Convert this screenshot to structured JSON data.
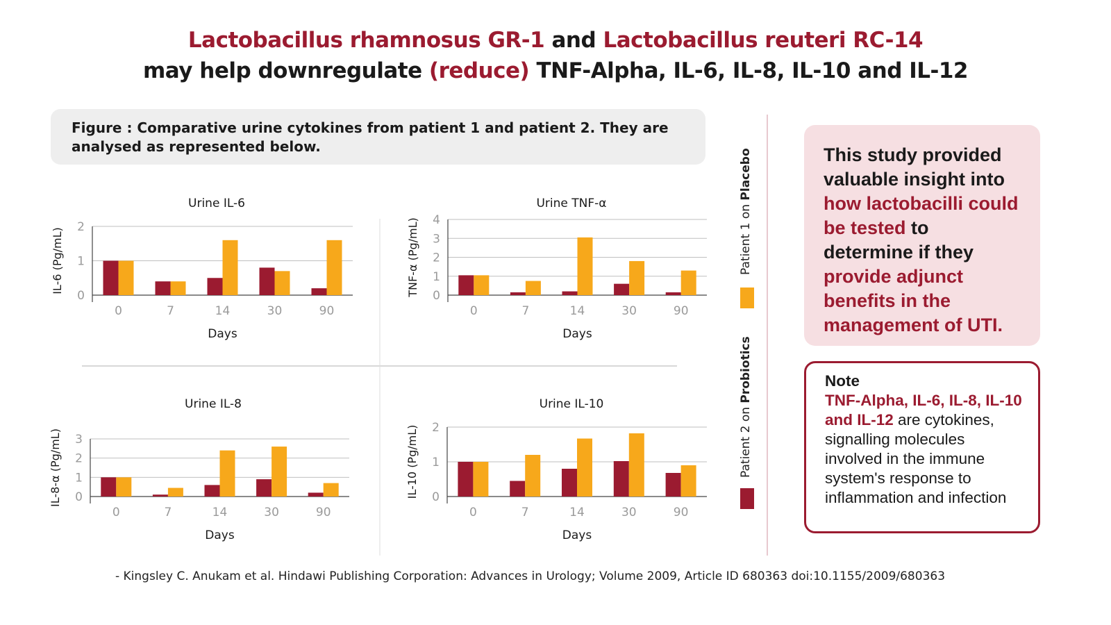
{
  "title": {
    "line1_part1": "Lactobacillus rhamnosus GR-1",
    "line1_part2": " and ",
    "line1_part3": "Lactobacillus reuteri RC-14",
    "line2_part1": "may help downregulate ",
    "line2_part2": "(reduce)",
    "line2_part3": " TNF-Alpha, IL-6, IL-8, IL-10 and IL-12"
  },
  "caption": "Figure : Comparative urine  cytokines from patient 1 and patient 2.  They are analysed as represented below.",
  "legend": {
    "placebo_prefix": "Patient 1 on ",
    "placebo_bold": "Placebo",
    "probiotics_prefix": "Patient 2 on ",
    "probiotics_bold": "Probiotics"
  },
  "colors": {
    "probiotics": "#9b1b30",
    "placebo": "#f7a81b",
    "accent": "#9b1b30"
  },
  "insight": {
    "p1": "This study provided valuable insight into ",
    "p2": "how lactobacilli could be tested",
    "p3": " to determine if they ",
    "p4": "provide adjunct benefits in the management of UTI."
  },
  "note": {
    "heading": "Note",
    "highlight": "TNF-Alpha, IL-6, IL-8, IL-10 and IL-12",
    "body": " are cytokines, signalling molecules involved in the immune system's response to inflammation and infection"
  },
  "reference": "-  Kingsley C. Anukam et al. Hindawi Publishing Corporation: Advances in Urology; Volume 2009, Article ID 680363  doi:10.1155/2009/680363",
  "chart_data": [
    {
      "type": "bar",
      "title": "Urine IL-6",
      "xlabel": "Days",
      "ylabel": "IL-6 (Pg/mL)",
      "categories": [
        "0",
        "7",
        "14",
        "30",
        "90"
      ],
      "ylim": [
        0,
        2
      ],
      "yticks": [
        0,
        1,
        2
      ],
      "series": [
        {
          "name": "Patient 2 on Probiotics",
          "values": [
            1.0,
            0.4,
            0.5,
            0.8,
            0.2
          ]
        },
        {
          "name": "Patient 1 on Placebo",
          "values": [
            1.0,
            0.4,
            1.6,
            0.7,
            1.6
          ]
        }
      ]
    },
    {
      "type": "bar",
      "title": "Urine TNF-α",
      "xlabel": "Days",
      "ylabel": "TNF-α (Pg/mL)",
      "categories": [
        "0",
        "7",
        "14",
        "30",
        "90"
      ],
      "ylim": [
        0,
        4
      ],
      "yticks": [
        0,
        1,
        2,
        3,
        4
      ],
      "series": [
        {
          "name": "Patient 2 on Probiotics",
          "values": [
            1.05,
            0.15,
            0.2,
            0.6,
            0.15
          ]
        },
        {
          "name": "Patient 1 on Placebo",
          "values": [
            1.05,
            0.75,
            3.05,
            1.8,
            1.3
          ]
        }
      ]
    },
    {
      "type": "bar",
      "title": "Urine IL-8",
      "xlabel": "Days",
      "ylabel": "IL-8-α (Pg/mL)",
      "categories": [
        "0",
        "7",
        "14",
        "30",
        "90"
      ],
      "ylim": [
        0,
        3
      ],
      "yticks": [
        0,
        1,
        2,
        3
      ],
      "series": [
        {
          "name": "Patient 2 on Probiotics",
          "values": [
            1.0,
            0.1,
            0.6,
            0.9,
            0.2
          ]
        },
        {
          "name": "Patient 1 on Placebo",
          "values": [
            1.0,
            0.45,
            2.4,
            2.6,
            0.7
          ]
        }
      ]
    },
    {
      "type": "bar",
      "title": "Urine IL-10",
      "xlabel": "Days",
      "ylabel": "IL-10 (Pg/mL)",
      "categories": [
        "0",
        "7",
        "14",
        "30",
        "90"
      ],
      "ylim": [
        0,
        2
      ],
      "yticks": [
        0,
        1,
        2
      ],
      "series": [
        {
          "name": "Patient 2 on Probiotics",
          "values": [
            1.0,
            0.45,
            0.8,
            1.02,
            0.68
          ]
        },
        {
          "name": "Patient 1 on Placebo",
          "values": [
            1.0,
            1.2,
            1.67,
            1.82,
            0.9
          ]
        }
      ]
    }
  ]
}
